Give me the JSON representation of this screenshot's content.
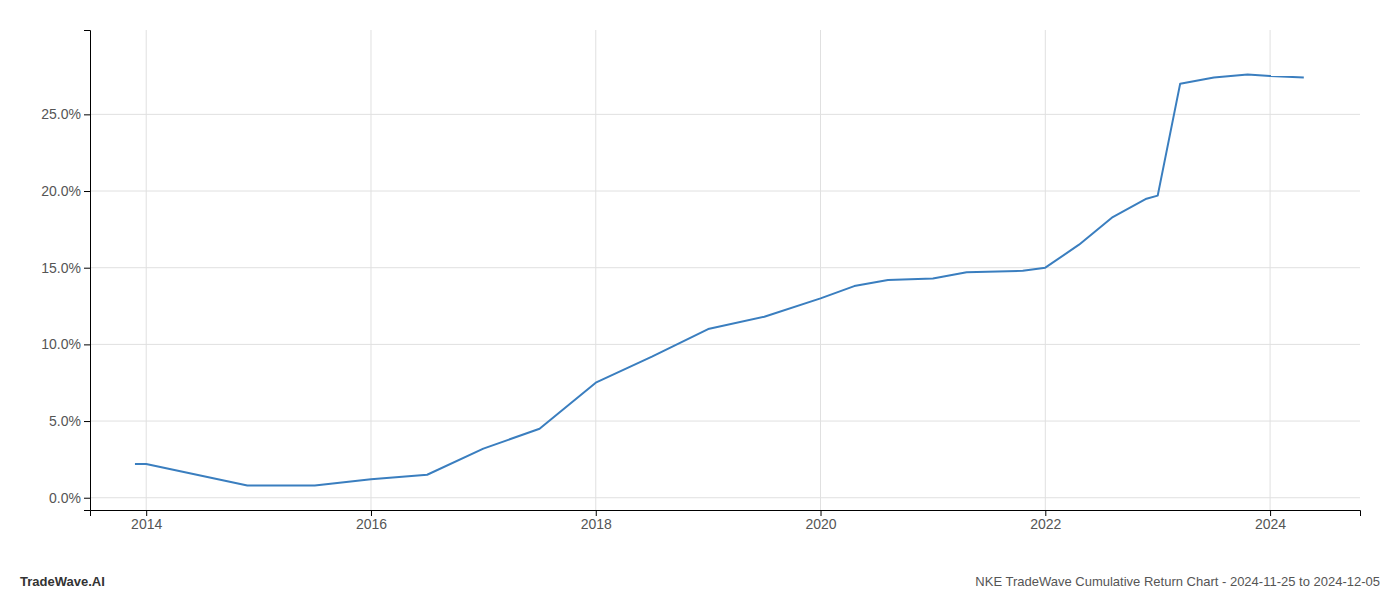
{
  "chart_data": {
    "type": "line",
    "title": "NKE TradeWave Cumulative Return Chart - 2024-11-25 to 2024-12-05",
    "annotations": [
      "TradeWave.AI"
    ],
    "x": [
      2013.9,
      2014.0,
      2014.9,
      2015.5,
      2016.0,
      2016.5,
      2017.0,
      2017.5,
      2018.0,
      2018.5,
      2019.0,
      2019.5,
      2020.0,
      2020.3,
      2020.6,
      2021.0,
      2021.3,
      2021.8,
      2022.0,
      2022.3,
      2022.6,
      2022.9,
      2023.0,
      2023.2,
      2023.5,
      2023.8,
      2024.0,
      2024.3
    ],
    "values": [
      0.022,
      0.022,
      0.008,
      0.008,
      0.012,
      0.015,
      0.032,
      0.045,
      0.075,
      0.092,
      0.11,
      0.118,
      0.13,
      0.138,
      0.142,
      0.143,
      0.147,
      0.148,
      0.15,
      0.165,
      0.183,
      0.195,
      0.197,
      0.27,
      0.274,
      0.276,
      0.275,
      0.274
    ],
    "color": "#3a7ebf",
    "xlim": [
      2013.5,
      2024.8
    ],
    "ylim": [
      -0.008,
      0.305
    ],
    "xticks": [
      2014,
      2016,
      2018,
      2020,
      2022,
      2024
    ],
    "yticks": [
      {
        "value": 0.0,
        "label": "0.0%"
      },
      {
        "value": 0.05,
        "label": "5.0%"
      },
      {
        "value": 0.1,
        "label": "10.0%"
      },
      {
        "value": 0.15,
        "label": "15.0%"
      },
      {
        "value": 0.2,
        "label": "20.0%"
      },
      {
        "value": 0.25,
        "label": "25.0%"
      }
    ],
    "grid": true
  }
}
